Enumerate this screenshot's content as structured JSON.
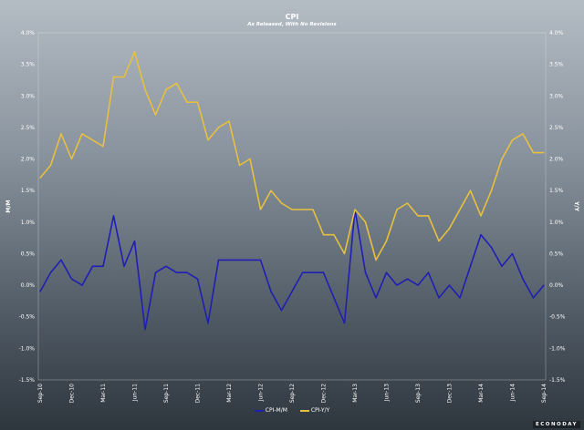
{
  "chart_data": {
    "type": "line",
    "title": "CPI",
    "subtitle": "As Released, With No Revisions",
    "source": "ECONODAY",
    "ylabel_left": "M/M",
    "ylabel_right": "Y/Y",
    "ylim": [
      -1.5,
      4.0
    ],
    "yticks": [
      "-1.5%",
      "-1.0%",
      "-0.5%",
      "0.0%",
      "0.5%",
      "1.0%",
      "1.5%",
      "2.0%",
      "2.5%",
      "3.0%",
      "3.5%",
      "4.0%"
    ],
    "x": [
      "Sep-10",
      "Oct-10",
      "Nov-10",
      "Dec-10",
      "Jan-11",
      "Feb-11",
      "Mar-11",
      "Apr-11",
      "May-11",
      "Jun-11",
      "Jul-11",
      "Aug-11",
      "Sep-11",
      "Oct-11",
      "Nov-11",
      "Dec-11",
      "Jan-12",
      "Feb-12",
      "Mar-12",
      "Apr-12",
      "May-12",
      "Jun-12",
      "Jul-12",
      "Aug-12",
      "Sep-12",
      "Oct-12",
      "Nov-12",
      "Dec-12",
      "Jan-13",
      "Feb-13",
      "Mar-13",
      "Apr-13",
      "May-13",
      "Jun-13",
      "Jul-13",
      "Aug-13",
      "Sep-13",
      "Oct-13",
      "Nov-13",
      "Dec-13",
      "Jan-14",
      "Feb-14",
      "Mar-14",
      "Apr-14",
      "May-14",
      "Jun-14",
      "Jul-14",
      "Aug-14",
      "Sep-14"
    ],
    "xtick_labels": [
      "Sep-10",
      "Dec-10",
      "Mar-11",
      "Jun-11",
      "Sep-11",
      "Dec-11",
      "Mar-12",
      "Jun-12",
      "Sep-12",
      "Dec-12",
      "Mar-13",
      "Jun-13",
      "Sep-13",
      "Dec-13",
      "Mar-14",
      "Jun-14",
      "Sep-14"
    ],
    "series": [
      {
        "name": "CPI-M/M",
        "color": "#1f1fb4",
        "values": [
          -0.1,
          0.2,
          0.4,
          0.1,
          0.0,
          0.3,
          0.3,
          1.1,
          0.3,
          0.7,
          -0.7,
          0.2,
          0.3,
          0.2,
          0.2,
          0.1,
          -0.6,
          0.4,
          0.4,
          0.4,
          0.4,
          0.4,
          -0.1,
          -0.4,
          -0.1,
          0.2,
          0.2,
          0.2,
          -0.2,
          -0.6,
          1.2,
          0.2,
          -0.2,
          0.2,
          0.0,
          0.1,
          0.0,
          0.2,
          -0.2,
          0.0,
          -0.2,
          0.3,
          0.8,
          0.6,
          0.3,
          0.5,
          0.1,
          -0.2,
          0.0
        ]
      },
      {
        "name": "CPI-Y/Y",
        "color": "#e6c040",
        "values": [
          1.7,
          1.9,
          2.4,
          2.0,
          2.4,
          2.3,
          2.2,
          3.3,
          3.3,
          3.7,
          3.1,
          2.7,
          3.1,
          3.2,
          2.9,
          2.9,
          2.3,
          2.5,
          2.6,
          1.9,
          2.0,
          1.2,
          1.5,
          1.3,
          1.2,
          1.2,
          1.2,
          0.8,
          0.8,
          0.5,
          1.2,
          1.0,
          0.4,
          0.7,
          1.2,
          1.3,
          1.1,
          1.1,
          0.7,
          0.9,
          1.2,
          1.5,
          1.1,
          1.5,
          2.0,
          2.3,
          2.4,
          2.1,
          2.1
        ]
      }
    ],
    "grid": false,
    "legend": "bottom-center"
  }
}
